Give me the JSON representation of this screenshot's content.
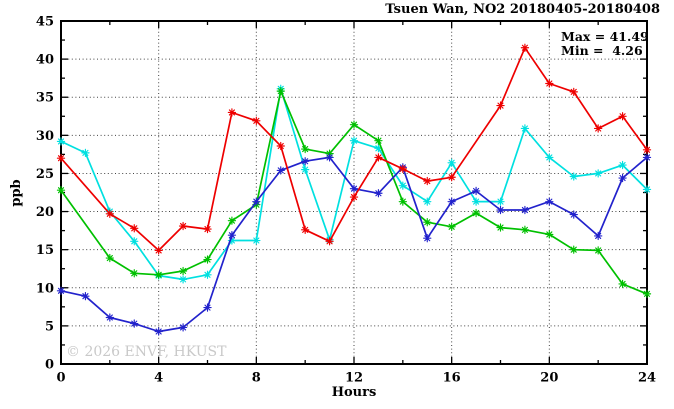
{
  "figure": {
    "watermark": "© 2026 ENVF, HKUST",
    "background": "#ffffff"
  },
  "chart_data": {
    "type": "line",
    "title": "Tsuen Wan, NO2 20180405-20180408",
    "xlabel": "Hours",
    "ylabel": "ppb",
    "xlim": [
      0,
      24
    ],
    "ylim": [
      0,
      45
    ],
    "xticks_major": [
      0,
      4,
      8,
      12,
      16,
      20,
      24
    ],
    "xticks_minor": [
      2,
      6,
      10,
      14,
      18,
      22
    ],
    "yticks_major": [
      0,
      5,
      10,
      15,
      20,
      25,
      30,
      35,
      40,
      45
    ],
    "yticks_minor": [
      2.5,
      7.5,
      12.5,
      17.5,
      22.5,
      27.5,
      32.5,
      37.5,
      42.5
    ],
    "grid_x": [
      4,
      8,
      12,
      16,
      20
    ],
    "grid_y": [
      5,
      10,
      15,
      20,
      25,
      30,
      35,
      40
    ],
    "grid_style": "dotted",
    "legend_position": "top-right-inside",
    "annotations": {
      "max_label": "Max = 41.49",
      "min_label": "Min =  4.26",
      "max_value": 41.49,
      "min_value": 4.26
    },
    "x": [
      0,
      1,
      2,
      3,
      4,
      5,
      6,
      7,
      8,
      9,
      10,
      11,
      12,
      13,
      14,
      15,
      16,
      17,
      18,
      19,
      20,
      21,
      22,
      23,
      24
    ],
    "series": [
      {
        "name": "cyan",
        "color": "#00e0e0",
        "marker": "asterisk",
        "values": [
          29.2,
          27.7,
          20.0,
          16.1,
          11.6,
          11.1,
          11.7,
          16.2,
          16.2,
          36.1,
          25.5,
          16.3,
          29.3,
          28.3,
          23.4,
          21.3,
          26.4,
          21.3,
          21.3,
          30.9,
          27.1,
          24.6,
          25.0,
          26.1,
          22.9
        ]
      },
      {
        "name": "green",
        "color": "#00c000",
        "marker": "asterisk",
        "values": [
          22.8,
          null,
          13.9,
          11.9,
          11.7,
          12.2,
          13.7,
          18.8,
          20.9,
          35.8,
          28.2,
          27.6,
          31.4,
          29.3,
          21.3,
          18.6,
          18.0,
          19.8,
          17.9,
          17.6,
          17.0,
          15.0,
          14.9,
          10.5,
          9.2
        ]
      },
      {
        "name": "blue",
        "color": "#2222cc",
        "marker": "asterisk",
        "values": [
          9.6,
          8.9,
          6.1,
          5.3,
          4.26,
          4.8,
          7.4,
          16.9,
          21.3,
          25.4,
          26.6,
          27.1,
          23.0,
          22.4,
          25.8,
          16.5,
          21.3,
          22.7,
          20.2,
          20.2,
          21.3,
          19.6,
          16.8,
          24.4,
          27.1
        ]
      },
      {
        "name": "red",
        "color": "#ee0000",
        "marker": "asterisk",
        "values": [
          27.0,
          null,
          19.7,
          17.8,
          14.9,
          18.1,
          17.7,
          33.0,
          31.9,
          28.6,
          17.6,
          16.1,
          21.9,
          27.1,
          25.6,
          24.0,
          24.5,
          null,
          33.9,
          41.49,
          36.8,
          35.7,
          30.9,
          32.5,
          28.1
        ]
      }
    ]
  }
}
